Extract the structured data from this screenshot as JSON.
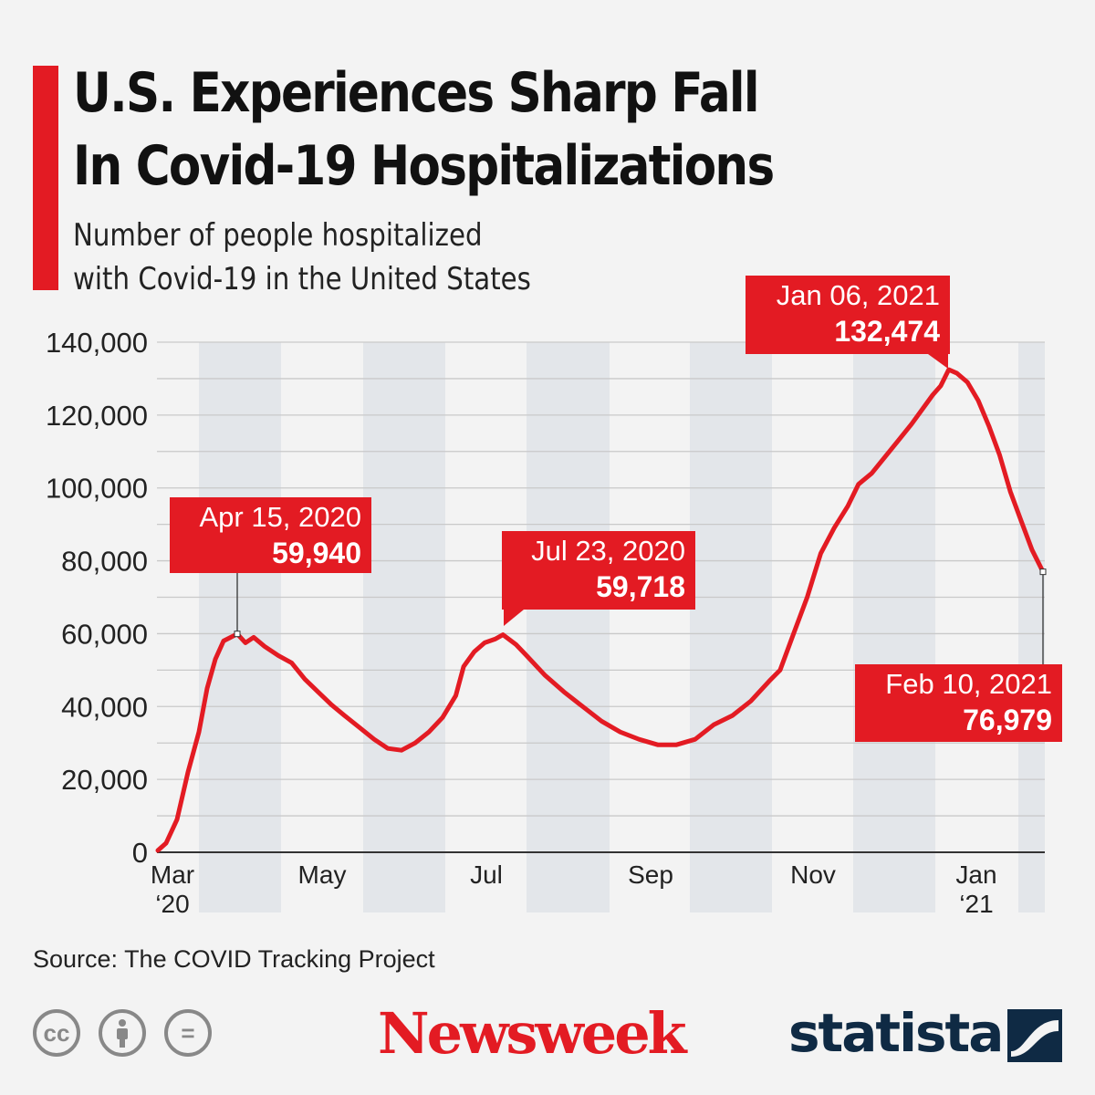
{
  "header": {
    "title_line1": "U.S. Experiences Sharp Fall",
    "title_line2": "In Covid-19 Hospitalizations",
    "subtitle_line1": "Number of people hospitalized",
    "subtitle_line2": "with Covid-19 in the United States"
  },
  "footer": {
    "source": "Source: The COVID Tracking Project",
    "cc_icons": [
      "cc-icon",
      "by-icon",
      "nd-icon"
    ],
    "cc_label": "cc",
    "nd_label": "=",
    "newsweek": "Newsweek",
    "statista": "statista"
  },
  "colors": {
    "accent": "#e31b23",
    "band": "#e3e6ea",
    "brand_dark": "#0f2a44"
  },
  "chart_data": {
    "type": "line",
    "title": "U.S. Experiences Sharp Fall In Covid-19 Hospitalizations",
    "ylabel": "Number of people hospitalized",
    "xlabel": "",
    "ylim": [
      0,
      140000
    ],
    "yticks": [
      0,
      20000,
      40000,
      60000,
      80000,
      100000,
      120000,
      140000
    ],
    "ytick_labels": [
      "0",
      "20,000",
      "40,000",
      "60,000",
      "80,000",
      "100,000",
      "120,000",
      "140,000"
    ],
    "xtick_labels": [
      {
        "date": "2020-03-01",
        "l1": "Mar",
        "l2": "‘20"
      },
      {
        "date": "2020-05-01",
        "l1": "May",
        "l2": ""
      },
      {
        "date": "2020-07-01",
        "l1": "Jul",
        "l2": ""
      },
      {
        "date": "2020-09-01",
        "l1": "Sep",
        "l2": ""
      },
      {
        "date": "2020-11-01",
        "l1": "Nov",
        "l2": ""
      },
      {
        "date": "2021-01-01",
        "l1": "Jan",
        "l2": "‘21"
      }
    ],
    "grid": true,
    "series": [
      {
        "name": "Hospitalized",
        "points": [
          [
            "2020-03-17",
            500
          ],
          [
            "2020-03-20",
            2500
          ],
          [
            "2020-03-24",
            9000
          ],
          [
            "2020-03-28",
            22000
          ],
          [
            "2020-04-01",
            33000
          ],
          [
            "2020-04-04",
            45000
          ],
          [
            "2020-04-07",
            53000
          ],
          [
            "2020-04-10",
            58000
          ],
          [
            "2020-04-15",
            59940
          ],
          [
            "2020-04-18",
            57500
          ],
          [
            "2020-04-21",
            59000
          ],
          [
            "2020-04-25",
            56500
          ],
          [
            "2020-04-30",
            54000
          ],
          [
            "2020-05-05",
            52000
          ],
          [
            "2020-05-10",
            47500
          ],
          [
            "2020-05-15",
            44000
          ],
          [
            "2020-05-20",
            40500
          ],
          [
            "2020-05-25",
            37500
          ],
          [
            "2020-05-31",
            34000
          ],
          [
            "2020-06-05",
            31000
          ],
          [
            "2020-06-10",
            28500
          ],
          [
            "2020-06-15",
            28000
          ],
          [
            "2020-06-20",
            30000
          ],
          [
            "2020-06-25",
            33000
          ],
          [
            "2020-06-30",
            37000
          ],
          [
            "2020-07-05",
            43000
          ],
          [
            "2020-07-08",
            51000
          ],
          [
            "2020-07-12",
            55000
          ],
          [
            "2020-07-16",
            57500
          ],
          [
            "2020-07-20",
            58500
          ],
          [
            "2020-07-23",
            59718
          ],
          [
            "2020-07-28",
            57000
          ],
          [
            "2020-08-01",
            54000
          ],
          [
            "2020-08-08",
            48500
          ],
          [
            "2020-08-15",
            44000
          ],
          [
            "2020-08-22",
            40000
          ],
          [
            "2020-08-29",
            36000
          ],
          [
            "2020-09-05",
            33000
          ],
          [
            "2020-09-12",
            31000
          ],
          [
            "2020-09-19",
            29500
          ],
          [
            "2020-09-26",
            29500
          ],
          [
            "2020-10-03",
            31000
          ],
          [
            "2020-10-10",
            35000
          ],
          [
            "2020-10-17",
            37500
          ],
          [
            "2020-10-24",
            41500
          ],
          [
            "2020-10-31",
            47000
          ],
          [
            "2020-11-04",
            50000
          ],
          [
            "2020-11-09",
            60000
          ],
          [
            "2020-11-14",
            70000
          ],
          [
            "2020-11-19",
            82000
          ],
          [
            "2020-11-24",
            89000
          ],
          [
            "2020-11-29",
            95000
          ],
          [
            "2020-12-03",
            101000
          ],
          [
            "2020-12-08",
            104000
          ],
          [
            "2020-12-13",
            108500
          ],
          [
            "2020-12-18",
            113000
          ],
          [
            "2020-12-23",
            117500
          ],
          [
            "2020-12-28",
            122500
          ],
          [
            "2020-12-31",
            125500
          ],
          [
            "2021-01-03",
            128000
          ],
          [
            "2021-01-06",
            132474
          ],
          [
            "2021-01-09",
            131500
          ],
          [
            "2021-01-13",
            129000
          ],
          [
            "2021-01-17",
            124000
          ],
          [
            "2021-01-21",
            117000
          ],
          [
            "2021-01-25",
            109000
          ],
          [
            "2021-01-29",
            99000
          ],
          [
            "2021-02-02",
            91000
          ],
          [
            "2021-02-06",
            83000
          ],
          [
            "2021-02-10",
            76979
          ]
        ]
      }
    ],
    "annotations": [
      {
        "date": "2020-04-15",
        "value": 59940,
        "label_date": "Apr 15, 2020",
        "label_value": "59,940"
      },
      {
        "date": "2020-07-23",
        "value": 59718,
        "label_date": "Jul 23, 2020",
        "label_value": "59,718"
      },
      {
        "date": "2021-01-06",
        "value": 132474,
        "label_date": "Jan 06, 2021",
        "label_value": "132,474"
      },
      {
        "date": "2021-02-10",
        "value": 76979,
        "label_date": "Feb 10, 2021",
        "label_value": "76,979"
      }
    ]
  }
}
